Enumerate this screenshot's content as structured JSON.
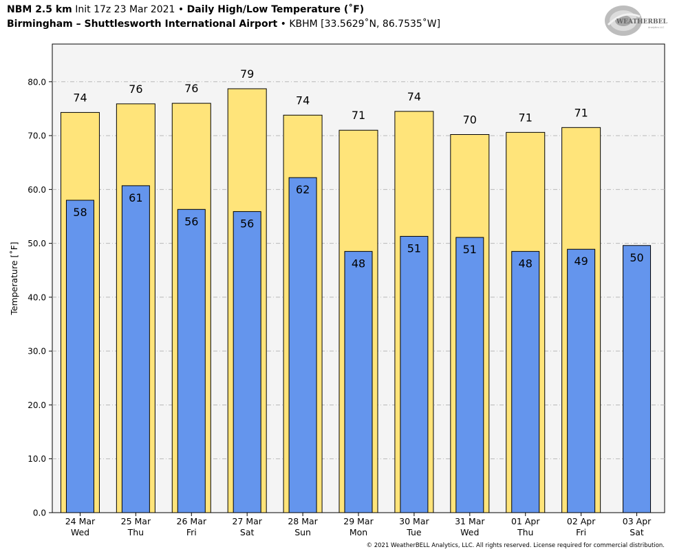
{
  "header": {
    "model": "NBM 2.5 km",
    "init": "Init 17z 23 Mar 2021",
    "bullet": "•",
    "product": "Daily High/Low Temperature (˚F)",
    "location": "Birmingham – Shuttlesworth International Airport",
    "station": "KBHM [33.5629˚N, 86.7535˚W]"
  },
  "logo": {
    "text": "WEATHERBELL",
    "sub": "Analytics LLC"
  },
  "copyright": "© 2021 WeatherBELL Analytics, LLC. All rights reserved. License required for commercial distribution.",
  "colors": {
    "high": "#ffe47a",
    "low": "#6495ed",
    "plot_bg": "#f4f4f4",
    "grid": "#b8b8b8"
  },
  "chart_data": {
    "type": "bar",
    "ylabel": "Temperature [˚F]",
    "ylim": [
      0,
      87
    ],
    "yticks": [
      "0.0",
      "10.0",
      "20.0",
      "30.0",
      "40.0",
      "50.0",
      "60.0",
      "70.0",
      "80.0"
    ],
    "grid": true,
    "categories": [
      [
        "24 Mar",
        "Wed"
      ],
      [
        "25 Mar",
        "Thu"
      ],
      [
        "26 Mar",
        "Fri"
      ],
      [
        "27 Mar",
        "Sat"
      ],
      [
        "28 Mar",
        "Sun"
      ],
      [
        "29 Mar",
        "Mon"
      ],
      [
        "30 Mar",
        "Tue"
      ],
      [
        "31 Mar",
        "Wed"
      ],
      [
        "01 Apr",
        "Thu"
      ],
      [
        "02 Apr",
        "Fri"
      ],
      [
        "03 Apr",
        "Sat"
      ]
    ],
    "series": [
      {
        "key": "high",
        "values": [
          74.3,
          75.9,
          76.0,
          78.7,
          73.8,
          71.0,
          74.5,
          70.2,
          70.6,
          71.5,
          null
        ],
        "labels": [
          "74",
          "76",
          "76",
          "79",
          "74",
          "71",
          "74",
          "70",
          "71",
          "71",
          ""
        ]
      },
      {
        "key": "low",
        "values": [
          58.0,
          60.7,
          56.3,
          55.9,
          62.2,
          48.5,
          51.3,
          51.1,
          48.5,
          48.9,
          49.6
        ],
        "labels": [
          "58",
          "61",
          "56",
          "56",
          "62",
          "48",
          "51",
          "51",
          "48",
          "49",
          "50"
        ]
      }
    ]
  }
}
